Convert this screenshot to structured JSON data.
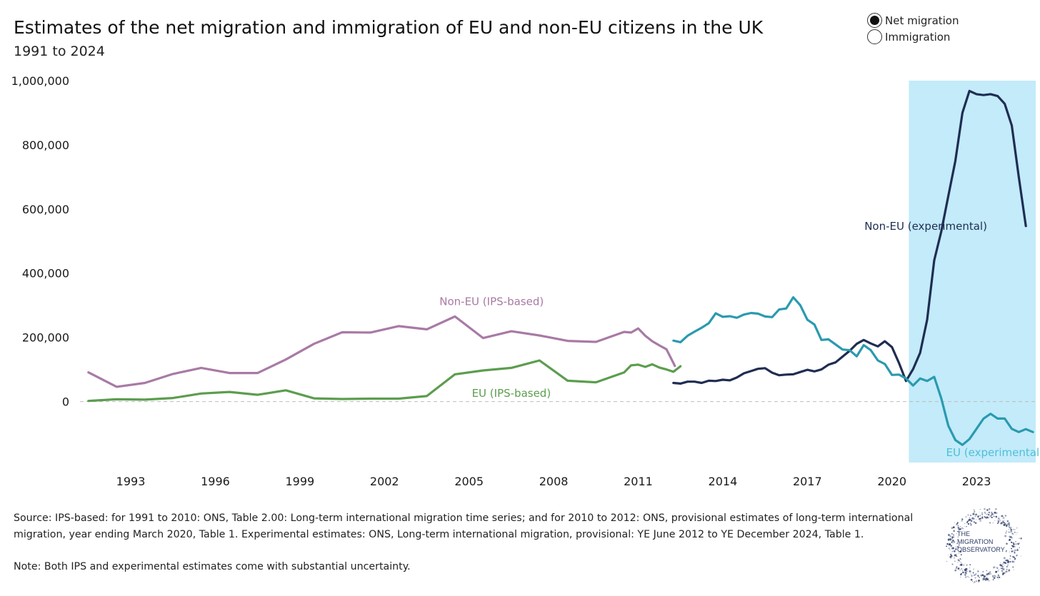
{
  "title": "Estimates of the net migration and immigration of EU and non-EU citizens in the UK",
  "subtitle": "1991 to 2024",
  "legend": {
    "options": [
      "Net migration",
      "Immigration"
    ],
    "selected": "Net migration"
  },
  "source": "Source: IPS-based: for 1991 to 2010: ONS, Table 2.00: Long-term international migration time series; and for 2010 to 2012: ONS, provisional estimates of long-term international migration, year ending March 2020, Table 1. Experimental estimates: ONS, Long-term international migration, provisional: YE June 2012 to YE December 2024, Table 1.",
  "note": "Note: Both IPS and experimental estimates come with substantial uncertainty.",
  "logo": {
    "text": [
      "THE",
      "MIGRATION",
      "OBSERVATORY"
    ],
    "color": "#2b3a67"
  },
  "chart_data": {
    "type": "line",
    "x_ticks": [
      1993,
      1996,
      1999,
      2002,
      2005,
      2008,
      2011,
      2014,
      2017,
      2020,
      2023
    ],
    "y_ticks": [
      0,
      200000,
      400000,
      600000,
      800000,
      1000000
    ],
    "y_tick_labels": [
      "0",
      "200,000",
      "400,000",
      "600,000",
      "800,000",
      "1,000,000"
    ],
    "xlim": [
      1991.2,
      2025.1
    ],
    "ylim": [
      -190000,
      1000000
    ],
    "highlight": {
      "x_range": [
        2020.6,
        2025.1
      ],
      "color": "#c3ebfa"
    },
    "zero_line": true,
    "series": [
      {
        "name": "Non-EU (IPS-based)",
        "color": "#a87aa5",
        "label_color": "#a87aa5",
        "points": [
          [
            1991.5,
            91000
          ],
          [
            1992.5,
            46000
          ],
          [
            1993.5,
            58000
          ],
          [
            1994.5,
            86000
          ],
          [
            1995.5,
            105000
          ],
          [
            1996.5,
            89000
          ],
          [
            1997.5,
            89000
          ],
          [
            1998.5,
            131000
          ],
          [
            1999.5,
            180000
          ],
          [
            2000.5,
            216000
          ],
          [
            2001.5,
            215000
          ],
          [
            2002.5,
            235000
          ],
          [
            2003.5,
            225000
          ],
          [
            2004.5,
            265000
          ],
          [
            2005.5,
            198000
          ],
          [
            2006.5,
            219000
          ],
          [
            2007.5,
            206000
          ],
          [
            2008.5,
            189000
          ],
          [
            2009.5,
            186000
          ],
          [
            2010.5,
            217000
          ],
          [
            2010.75,
            215000
          ],
          [
            2011,
            228000
          ],
          [
            2011.25,
            205000
          ],
          [
            2011.5,
            188000
          ],
          [
            2011.75,
            175000
          ],
          [
            2012,
            163000
          ],
          [
            2012.25,
            120000
          ],
          [
            2012.3,
            111000
          ]
        ]
      },
      {
        "name": "EU (IPS-based)",
        "color": "#5c9d4e",
        "label_color": "#5c9d4e",
        "points": [
          [
            1991.5,
            2000
          ],
          [
            1992.5,
            7000
          ],
          [
            1993.5,
            6000
          ],
          [
            1994.5,
            11000
          ],
          [
            1995.5,
            25000
          ],
          [
            1996.5,
            30000
          ],
          [
            1997.5,
            21000
          ],
          [
            1998.5,
            35000
          ],
          [
            1999.5,
            10000
          ],
          [
            2000.5,
            8000
          ],
          [
            2001.5,
            9000
          ],
          [
            2002.5,
            9000
          ],
          [
            2003.5,
            17000
          ],
          [
            2004.5,
            85000
          ],
          [
            2005.5,
            97000
          ],
          [
            2006.5,
            105000
          ],
          [
            2007.5,
            128000
          ],
          [
            2008.5,
            65000
          ],
          [
            2009.5,
            60000
          ],
          [
            2010.5,
            91000
          ],
          [
            2010.75,
            113000
          ],
          [
            2011,
            115000
          ],
          [
            2011.25,
            108000
          ],
          [
            2011.5,
            116000
          ],
          [
            2011.75,
            106000
          ],
          [
            2012,
            100000
          ],
          [
            2012.25,
            93000
          ],
          [
            2012.5,
            110000
          ]
        ]
      },
      {
        "name": "Non-EU (experimental)",
        "color": "#1f2d52",
        "label_color": "#1f2d52",
        "points": [
          [
            2012.25,
            58000
          ],
          [
            2012.5,
            56000
          ],
          [
            2012.75,
            62000
          ],
          [
            2013,
            62000
          ],
          [
            2013.25,
            58000
          ],
          [
            2013.5,
            65000
          ],
          [
            2013.75,
            64000
          ],
          [
            2014,
            68000
          ],
          [
            2014.25,
            66000
          ],
          [
            2014.5,
            75000
          ],
          [
            2014.75,
            88000
          ],
          [
            2015,
            95000
          ],
          [
            2015.25,
            102000
          ],
          [
            2015.5,
            104000
          ],
          [
            2015.75,
            90000
          ],
          [
            2016,
            82000
          ],
          [
            2016.25,
            84000
          ],
          [
            2016.5,
            85000
          ],
          [
            2016.75,
            92000
          ],
          [
            2017,
            99000
          ],
          [
            2017.25,
            94000
          ],
          [
            2017.5,
            100000
          ],
          [
            2017.75,
            115000
          ],
          [
            2018,
            122000
          ],
          [
            2018.25,
            140000
          ],
          [
            2018.5,
            158000
          ],
          [
            2018.75,
            180000
          ],
          [
            2019,
            192000
          ],
          [
            2019.25,
            181000
          ],
          [
            2019.5,
            172000
          ],
          [
            2019.75,
            188000
          ],
          [
            2020,
            170000
          ],
          [
            2020.25,
            120000
          ],
          [
            2020.5,
            64000
          ],
          [
            2020.75,
            101000
          ],
          [
            2021,
            152000
          ],
          [
            2021.25,
            255000
          ],
          [
            2021.5,
            440000
          ],
          [
            2021.75,
            530000
          ],
          [
            2022,
            640000
          ],
          [
            2022.25,
            750000
          ],
          [
            2022.5,
            900000
          ],
          [
            2022.75,
            968000
          ],
          [
            2023,
            958000
          ],
          [
            2023.25,
            955000
          ],
          [
            2023.5,
            958000
          ],
          [
            2023.75,
            952000
          ],
          [
            2024,
            928000
          ],
          [
            2024.25,
            860000
          ],
          [
            2024.5,
            700000
          ],
          [
            2024.75,
            547000
          ]
        ]
      },
      {
        "name": "EU (experimental)",
        "color": "#2a9aaf",
        "label_color": "#4fbfd6",
        "points": [
          [
            2012.25,
            190000
          ],
          [
            2012.5,
            185000
          ],
          [
            2012.75,
            205000
          ],
          [
            2013,
            218000
          ],
          [
            2013.25,
            230000
          ],
          [
            2013.5,
            244000
          ],
          [
            2013.75,
            275000
          ],
          [
            2014,
            264000
          ],
          [
            2014.25,
            266000
          ],
          [
            2014.5,
            261000
          ],
          [
            2014.75,
            271000
          ],
          [
            2015,
            276000
          ],
          [
            2015.25,
            274000
          ],
          [
            2015.5,
            265000
          ],
          [
            2015.75,
            263000
          ],
          [
            2016,
            287000
          ],
          [
            2016.25,
            290000
          ],
          [
            2016.5,
            325000
          ],
          [
            2016.75,
            300000
          ],
          [
            2017,
            255000
          ],
          [
            2017.25,
            240000
          ],
          [
            2017.5,
            192000
          ],
          [
            2017.75,
            194000
          ],
          [
            2018,
            178000
          ],
          [
            2018.25,
            162000
          ],
          [
            2018.5,
            160000
          ],
          [
            2018.75,
            141000
          ],
          [
            2019,
            176000
          ],
          [
            2019.25,
            160000
          ],
          [
            2019.5,
            128000
          ],
          [
            2019.75,
            117000
          ],
          [
            2020,
            83000
          ],
          [
            2020.25,
            84000
          ],
          [
            2020.5,
            72000
          ],
          [
            2020.75,
            50000
          ],
          [
            2021,
            72000
          ],
          [
            2021.25,
            64000
          ],
          [
            2021.5,
            77000
          ],
          [
            2021.75,
            10000
          ],
          [
            2022,
            -75000
          ],
          [
            2022.25,
            -120000
          ],
          [
            2022.5,
            -135000
          ],
          [
            2022.75,
            -117000
          ],
          [
            2023,
            -85000
          ],
          [
            2023.25,
            -53000
          ],
          [
            2023.5,
            -38000
          ],
          [
            2023.75,
            -53000
          ],
          [
            2024,
            -53000
          ],
          [
            2024.25,
            -85000
          ],
          [
            2024.5,
            -95000
          ],
          [
            2024.75,
            -86000
          ],
          [
            2025,
            -95000
          ]
        ]
      }
    ],
    "annotations": [
      {
        "text": "Non-EU (IPS-based)",
        "series": 0,
        "x": 2005.8,
        "y": 300000
      },
      {
        "text": "EU (IPS-based)",
        "series": 1,
        "x": 2006.5,
        "y": 15000
      },
      {
        "text": "Non-EU (experimental)",
        "series": 2,
        "x": 2021.2,
        "y": 535000
      },
      {
        "text": "EU (experimental)",
        "series": 3,
        "x": 2023.65,
        "y": -170000
      }
    ]
  }
}
